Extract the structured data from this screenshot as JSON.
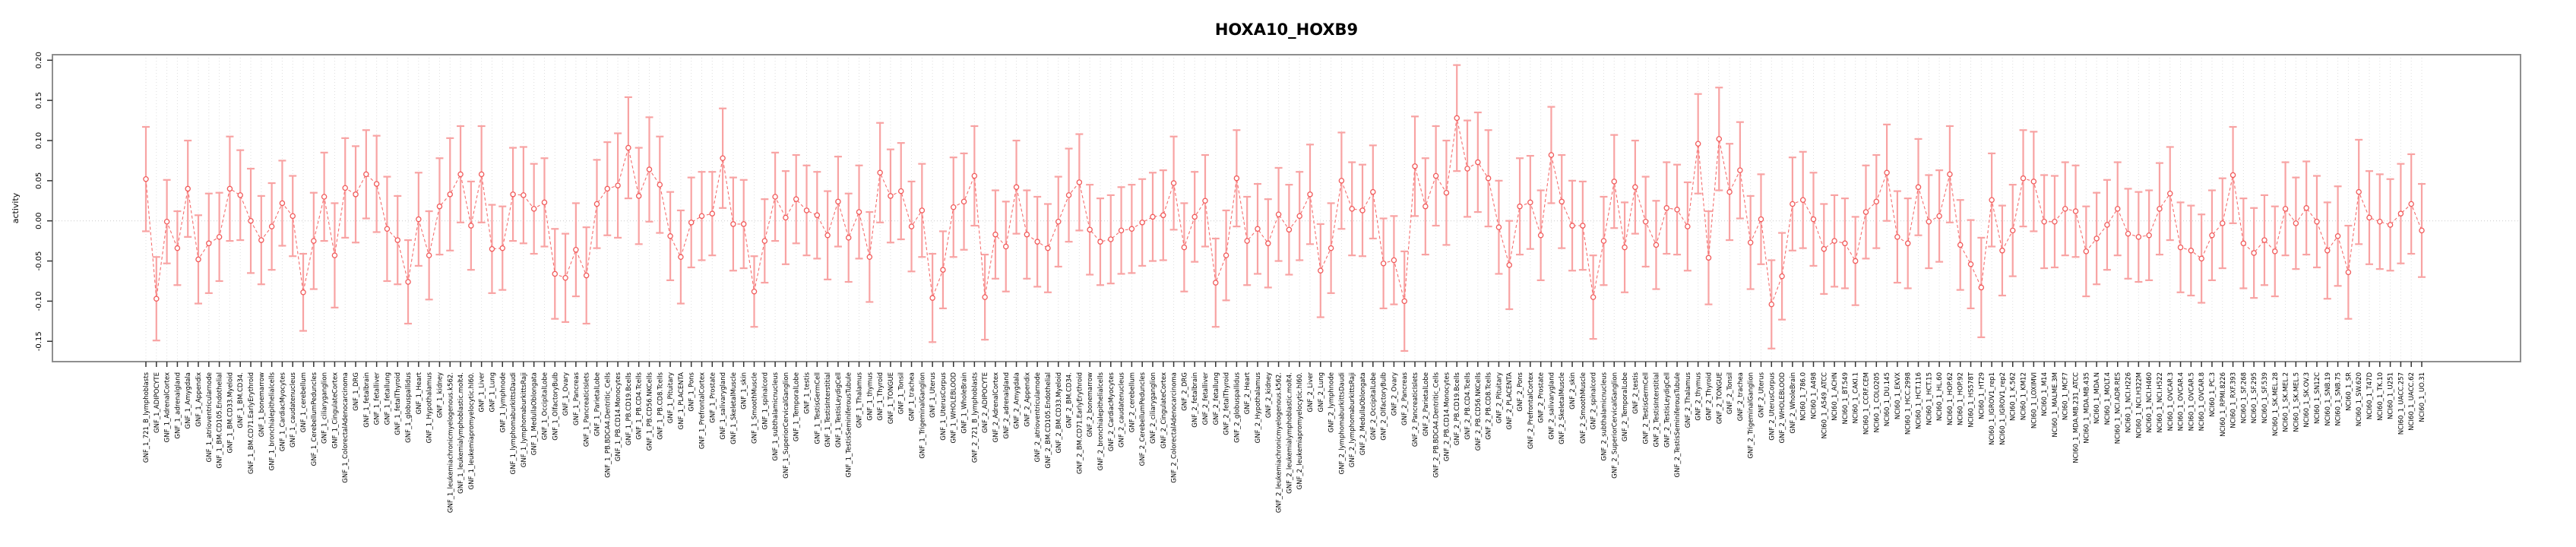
{
  "title": "HOXA10_HOXB9",
  "colors": {
    "error_bar": "#f8a3a3",
    "line": "#f56e6e",
    "marker_stroke": "#f15b5b",
    "marker_fill": "#ffffff",
    "grid": "#dedede",
    "zero_line": "#cfcfcf",
    "box_border": "#8e8e8e",
    "tick": "#333333",
    "text": "#000000"
  },
  "chart_data": {
    "type": "line",
    "title": "HOXA10_HOXB9",
    "xlabel": "",
    "ylabel": "activity",
    "ylim": [
      -0.175,
      0.215
    ],
    "yticks": [
      0.2,
      0.15,
      0.1,
      0.05,
      0.0,
      -0.05,
      -0.1,
      -0.15
    ],
    "grid": "vertical dotted gridline at every category; dotted horizontal line at y=0",
    "legend": "none",
    "style": "open-circle points with pale-red error bars, dashed red connecting line (R plotmeans-like)",
    "categories": [
      "GNF_1_721_B_lymphoblasts",
      "GNF_1_ADIPOCYTE",
      "GNF_1_AdrenalCortex",
      "GNF_1_adrenalgland",
      "GNF_1_Amygdala",
      "GNF_1_Appendix",
      "GNF_1_atrioventricularnode",
      "GNF_1_BM.CD105.Endothelial",
      "GNF_1_BM.CD33.Myeloid",
      "GNF_1_BM.CD34.",
      "GNF_1_BM.CD71.EarlyErythroid",
      "GNF_1_bonemarrow",
      "GNF_1_bronchialepithelialcells",
      "GNF_1_CardiacMyocytes",
      "GNF_1_caudatenucleus",
      "GNF_1_cerebellum",
      "GNF_1_CerebellumPeduncles",
      "GNF_1_ciliaryganglion",
      "GNF_1_CingulateCortex",
      "GNF_1_ColorectalAdenocarcinoma",
      "GNF_1_DRG",
      "GNF_1_fetalbrain",
      "GNF_1_fetalliver",
      "GNF_1_fetallung",
      "GNF_1_fetalThyroid",
      "GNF_1_globuspallidus",
      "GNF_1_Heart",
      "GNF_1_Hypothalamus",
      "GNF_1_kidney",
      "GNF_1_leukemiachronicmyelogenous.k562.",
      "GNF_1_leukemialymphoblastic.molt4.",
      "GNF_1_leukemiapromyelocytic.hl60.",
      "GNF_1_Liver",
      "GNF_1_Lung",
      "GNF_1_lymphnode",
      "GNF_1_lymphomaburkittsDaudi",
      "GNF_1_lymphomaburkittsRaji",
      "GNF_1_MedullaOblongata",
      "GNF_1_OccipitalLobe",
      "GNF_1_OlfactoryBulb",
      "GNF_1_Ovary",
      "GNF_1_Pancreas",
      "GNF_1_PancreaticIslets",
      "GNF_1_ParietalLobe",
      "GNF_1_PB.BDCA4.Dentritic_Cells",
      "GNF_1_PB.CD14.Monocytes",
      "GNF_1_PB.CD19.Bcells",
      "GNF_1_PB.CD4.Tcells",
      "GNF_1_PB.CD56.NKCells",
      "GNF_1_PB.CD8.Tcells",
      "GNF_1_Pituitary",
      "GNF_1_PLACENTA",
      "GNF_1_Pons",
      "GNF_1_PrefrontalCortex",
      "GNF_1_Prostate",
      "GNF_1_salivarygland",
      "GNF_1_SkeletalMuscle",
      "GNF_1_skin",
      "GNF_1_SmoothMuscle",
      "GNF_1_spinalcord",
      "GNF_1_subthalamicnucleus",
      "GNF_1_SuperiorCervicalGanglion",
      "GNF_1_TemporalLobe",
      "GNF_1_testis",
      "GNF_1_TestisGermCell",
      "GNF_1_TestisInterstitial",
      "GNF_1_TestisLeydigCell",
      "GNF_1_TestisSeminiferousTubule",
      "GNF_1_Thalamus",
      "GNF_1_thymus",
      "GNF_1_Thyroid",
      "GNF_1_TONGUE",
      "GNF_1_Tonsil",
      "GNF_1_trachea",
      "GNF_1_TrigeminalGanglion",
      "GNF_1_Uterus",
      "GNF_1_UterusCorpus",
      "GNF_1_WHOLEBLOOD",
      "GNF_1_WholeBrain",
      "GNF_2_721_B_lymphoblasts",
      "GNF_2_ADIPOCYTE",
      "GNF_2_AdrenalCortex",
      "GNF_2_adrenalgland",
      "GNF_2_Amygdala",
      "GNF_2_Appendix",
      "GNF_2_atrioventricularnode",
      "GNF_2_BM.CD105.Endothelial",
      "GNF_2_BM.CD33.Myeloid",
      "GNF_2_BM.CD34.",
      "GNF_2_BM.CD71.EarlyErythroid",
      "GNF_2_bonemarrow",
      "GNF_2_bronchialepithelialcells",
      "GNF_2_CardiacMyocytes",
      "GNF_2_caudatenucleus",
      "GNF_2_cerebellum",
      "GNF_2_CerebellumPeduncles",
      "GNF_2_ciliaryganglion",
      "GNF_2_CingulateCortex",
      "GNF_2_ColorectalAdenocarcinoma",
      "GNF_2_DRG",
      "GNF_2_fetalbrain",
      "GNF_2_fetalliver",
      "GNF_2_fetallung",
      "GNF_2_fetalThyroid",
      "GNF_2_globuspallidus",
      "GNF_2_Heart",
      "GNF_2_Hypothalamus",
      "GNF_2_kidney",
      "GNF_2_leukemiachronicmyelogenous.k562.",
      "GNF_2_leukemialymphoblastic.molt4.",
      "GNF_2_leukemiapromyelocytic.hl60.",
      "GNF_2_Liver",
      "GNF_2_Lung",
      "GNF_2_lymphnode",
      "GNF_2_lymphomaburkittsDaudi",
      "GNF_2_lymphomaburkittsRaji",
      "GNF_2_MedullaOblongata",
      "GNF_2_OccipitalLobe",
      "GNF_2_OlfactoryBulb",
      "GNF_2_Ovary",
      "GNF_2_Pancreas",
      "GNF_2_PancreaticIslets",
      "GNF_2_ParietalLobe",
      "GNF_2_PB.BDCA4.Dentritic_Cells",
      "GNF_2_PB.CD14.Monocytes",
      "GNF_2_PB.CD19.Bcells",
      "GNF_2_PB.CD4.Tcells",
      "GNF_2_PB.CD56.NKCells",
      "GNF_2_PB.CD8.Tcells",
      "GNF_2_Pituitary",
      "GNF_2_PLACENTA",
      "GNF_2_Pons",
      "GNF_2_PrefrontalCortex",
      "GNF_2_Prostate",
      "GNF_2_salivarygland",
      "GNF_2_SkeletalMuscle",
      "GNF_2_skin",
      "GNF_2_SmoothMuscle",
      "GNF_2_spinalcord",
      "GNF_2_subthalamicnucleus",
      "GNF_2_SuperiorCervicalGanglion",
      "GNF_2_TemporalLobe",
      "GNF_2_testis",
      "GNF_2_TestisGermCell",
      "GNF_2_TestisInterstitial",
      "GNF_2_TestisLeydigCell",
      "GNF_2_TestisSeminiferousTubule",
      "GNF_2_Thalamus",
      "GNF_2_thymus",
      "GNF_2_Thyroid",
      "GNF_2_TONGUE",
      "GNF_2_Tonsil",
      "GNF_2_trachea",
      "GNF_2_TrigeminalGanglion",
      "GNF_2_Uterus",
      "GNF_2_UterusCorpus",
      "GNF_2_WHOLEBLOOD",
      "GNF_2_WholeBrain",
      "NCI60_1_786.0",
      "NCI60_1_A498",
      "NCI60_1_A549_ATCC",
      "NCI60_1_ACHN",
      "NCI60_1_BT.549",
      "NCI60_1_CAKI.1",
      "NCI60_1_CCRF.CEM",
      "NCI60_1_COLO205",
      "NCI60_1_DU.145",
      "NCI60_1_EKVX",
      "NCI60_1_HCC.2998",
      "NCI60_1_HCT.116",
      "NCI60_1_HCT.15",
      "NCI60_1_HL.60",
      "NCI60_1_HOP.62",
      "NCI60_1_HOP.92",
      "NCI60_1_HS578T",
      "NCI60_1_HT29",
      "NCI60_1_IGROV1_rep1",
      "NCI60_1_IGROV1_rep2",
      "NCI60_1_K.562",
      "NCI60_1_KM12",
      "NCI60_1_LOXIMVI",
      "NCI60_1_M14",
      "NCI60_1_MALME.3M",
      "NCI60_1_MCF7",
      "NCI60_1_MDA.MB.231_ATCC",
      "NCI60_1_MDA.MB.435",
      "NCI60_1_MDA.N",
      "NCI60_1_MOLT.4",
      "NCI60_1_NCI.ADR.RES",
      "NCI60_1_NCI.H226",
      "NCI60_1_NCI.H322M",
      "NCI60_1_NCI.H460",
      "NCI60_1_NCI.H522",
      "NCI60_1_OVCAR.3",
      "NCI60_1_OVCAR.4",
      "NCI60_1_OVCAR.5",
      "NCI60_1_OVCAR.8",
      "NCI60_1_PC.3",
      "NCI60_1_RPMI.8226",
      "NCI60_1_RXF.393",
      "NCI60_1_SF.268",
      "NCI60_1_SF.295",
      "NCI60_1_SF.539",
      "NCI60_1_SK.MEL.28",
      "NCI60_1_SK.MEL.2",
      "NCI60_1_SK.MEL.5",
      "NCI60_1_SK.OV.3",
      "NCI60_1_SN12C",
      "NCI60_1_SNB.19",
      "NCI60_1_SNB.75",
      "NCI60_1_SR",
      "NCI60_1_SW.620",
      "NCI60_1_T47D",
      "NCI60_1_TK.10",
      "NCI60_1_U251",
      "NCI60_1_UACC.257",
      "NCI60_1_UACC.62",
      "NCI60_1_UO.31"
    ],
    "series": [
      {
        "name": "activity",
        "values": [
          0.052,
          -0.097,
          -0.001,
          -0.034,
          0.04,
          -0.048,
          -0.028,
          -0.02,
          0.04,
          0.032,
          0.0,
          -0.024,
          -0.007,
          0.022,
          0.006,
          -0.089,
          -0.025,
          0.03,
          -0.043,
          0.041,
          0.033,
          0.058,
          0.046,
          -0.01,
          -0.024,
          -0.076,
          0.002,
          -0.043,
          0.018,
          0.033,
          0.058,
          -0.006,
          0.058,
          -0.035,
          -0.034,
          0.033,
          0.032,
          0.015,
          0.023,
          -0.066,
          -0.071,
          -0.036,
          -0.068,
          0.021,
          0.04,
          0.044,
          0.091,
          0.031,
          0.064,
          0.045,
          -0.019,
          -0.045,
          -0.002,
          0.006,
          0.009,
          0.078,
          -0.004,
          -0.004,
          -0.088,
          -0.025,
          0.03,
          0.004,
          0.027,
          0.013,
          0.007,
          -0.018,
          0.024,
          -0.021,
          0.011,
          -0.045,
          0.06,
          0.031,
          0.037,
          -0.007,
          0.013,
          -0.096,
          -0.061,
          0.017,
          0.024,
          0.056,
          -0.095,
          -0.017,
          -0.032,
          0.042,
          -0.017,
          -0.026,
          -0.034,
          -0.001,
          0.032,
          0.048,
          -0.011,
          -0.026,
          -0.023,
          -0.012,
          -0.01,
          -0.002,
          0.005,
          0.007,
          0.047,
          -0.033,
          0.005,
          0.025,
          -0.077,
          -0.043,
          0.053,
          -0.025,
          -0.01,
          -0.028,
          0.008,
          -0.011,
          0.006,
          0.033,
          -0.062,
          -0.034,
          0.05,
          0.015,
          0.013,
          0.036,
          -0.053,
          -0.049,
          -0.1,
          0.068,
          0.018,
          0.056,
          0.035,
          0.128,
          0.065,
          0.073,
          0.053,
          -0.008,
          -0.055,
          0.018,
          0.023,
          -0.018,
          0.082,
          0.024,
          -0.006,
          -0.006,
          -0.095,
          -0.025,
          0.049,
          -0.033,
          0.042,
          -0.001,
          -0.03,
          0.016,
          0.014,
          -0.007,
          0.096,
          -0.046,
          0.102,
          0.036,
          0.063,
          -0.027,
          0.002,
          -0.104,
          -0.069,
          0.021,
          0.026,
          0.002,
          -0.035,
          -0.025,
          -0.028,
          -0.05,
          0.011,
          0.024,
          0.06,
          -0.02,
          -0.028,
          0.042,
          -0.001,
          0.006,
          0.058,
          -0.03,
          -0.054,
          -0.083,
          0.026,
          -0.037,
          -0.012,
          0.053,
          0.049,
          -0.001,
          -0.001,
          0.015,
          0.012,
          -0.038,
          -0.022,
          -0.005,
          0.015,
          -0.016,
          -0.02,
          -0.018,
          0.015,
          0.034,
          -0.033,
          -0.037,
          -0.047,
          -0.018,
          -0.003,
          0.057,
          -0.028,
          -0.04,
          -0.024,
          -0.038,
          0.015,
          -0.003,
          0.016,
          -0.001,
          -0.037,
          -0.019,
          -0.064,
          0.036,
          0.004,
          -0.001,
          -0.005,
          0.009,
          0.021,
          -0.012
        ],
        "err": [
          0.065,
          0.052,
          0.052,
          0.046,
          0.06,
          0.055,
          0.062,
          0.055,
          0.065,
          0.056,
          0.065,
          0.055,
          0.054,
          0.053,
          0.05,
          0.048,
          0.06,
          0.055,
          0.065,
          0.062,
          0.06,
          0.055,
          0.06,
          0.065,
          0.055,
          0.052,
          0.058,
          0.055,
          0.06,
          0.07,
          0.06,
          0.055,
          0.06,
          0.055,
          0.052,
          0.058,
          0.06,
          0.056,
          0.055,
          0.056,
          0.055,
          0.058,
          0.06,
          0.055,
          0.058,
          0.065,
          0.063,
          0.06,
          0.065,
          0.06,
          0.055,
          0.058,
          0.056,
          0.055,
          0.052,
          0.062,
          0.058,
          0.055,
          0.044,
          0.052,
          0.055,
          0.058,
          0.055,
          0.056,
          0.054,
          0.055,
          0.056,
          0.055,
          0.058,
          0.056,
          0.062,
          0.058,
          0.06,
          0.056,
          0.058,
          0.055,
          0.048,
          0.062,
          0.06,
          0.062,
          0.053,
          0.055,
          0.056,
          0.058,
          0.055,
          0.056,
          0.055,
          0.056,
          0.058,
          0.06,
          0.056,
          0.054,
          0.055,
          0.054,
          0.055,
          0.054,
          0.055,
          0.056,
          0.058,
          0.055,
          0.056,
          0.057,
          0.055,
          0.056,
          0.06,
          0.055,
          0.056,
          0.055,
          0.058,
          0.056,
          0.055,
          0.062,
          0.058,
          0.056,
          0.06,
          0.058,
          0.057,
          0.058,
          0.056,
          0.055,
          0.062,
          0.062,
          0.06,
          0.062,
          0.065,
          0.066,
          0.06,
          0.062,
          0.06,
          0.058,
          0.055,
          0.06,
          0.058,
          0.056,
          0.06,
          0.058,
          0.056,
          0.055,
          0.052,
          0.055,
          0.058,
          0.056,
          0.058,
          0.056,
          0.055,
          0.057,
          0.056,
          0.055,
          0.062,
          0.058,
          0.064,
          0.06,
          0.06,
          0.058,
          0.056,
          0.055,
          0.054,
          0.058,
          0.06,
          0.058,
          0.056,
          0.057,
          0.056,
          0.055,
          0.058,
          0.058,
          0.06,
          0.057,
          0.056,
          0.06,
          0.058,
          0.057,
          0.06,
          0.056,
          0.055,
          0.062,
          0.058,
          0.056,
          0.057,
          0.06,
          0.062,
          0.058,
          0.057,
          0.058,
          0.057,
          0.056,
          0.057,
          0.056,
          0.058,
          0.056,
          0.056,
          0.056,
          0.057,
          0.058,
          0.056,
          0.056,
          0.055,
          0.056,
          0.056,
          0.06,
          0.056,
          0.056,
          0.056,
          0.056,
          0.058,
          0.057,
          0.058,
          0.057,
          0.06,
          0.062,
          0.058,
          0.065,
          0.058,
          0.059,
          0.057,
          0.062,
          0.062,
          0.058
        ]
      }
    ]
  }
}
